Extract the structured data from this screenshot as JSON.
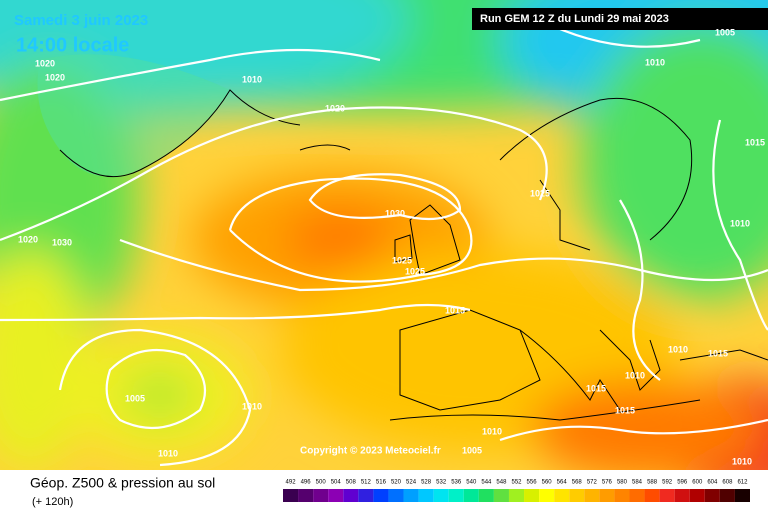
{
  "header": {
    "date": "Samedi 3 juin 2023",
    "time": "14:00 locale",
    "run": "Run GEM 12 Z du Lundi 29 mai 2023"
  },
  "copyright": "Copyright © 2023 Meteociel.fr",
  "footer": {
    "title": "Géop. Z500 & pression au sol",
    "lead": "(+ 120h)"
  },
  "isobar_labels": [
    1020,
    1020,
    1010,
    1020,
    1005,
    1010,
    1015,
    1030,
    1025,
    1020,
    1030,
    1025,
    1025,
    1015,
    1010,
    1005,
    1010,
    1010,
    1015,
    1015,
    1010,
    1010,
    1015,
    1010,
    1010,
    1005
  ],
  "legend": {
    "labels": [
      492,
      496,
      500,
      504,
      508,
      512,
      516,
      520,
      524,
      528,
      532,
      536,
      540,
      544,
      548,
      552,
      556,
      560,
      564,
      568,
      572,
      576,
      580,
      584,
      588,
      592,
      596,
      600,
      604,
      608,
      612
    ],
    "colors": [
      "#3a0050",
      "#55006e",
      "#70008e",
      "#8c00b4",
      "#6000d0",
      "#3020e0",
      "#0040ff",
      "#0070ff",
      "#00a0ff",
      "#00c8ff",
      "#00e4f0",
      "#00f0c8",
      "#00e898",
      "#20e060",
      "#60e040",
      "#a0f020",
      "#d8f000",
      "#ffff00",
      "#ffe400",
      "#ffcc00",
      "#ffb400",
      "#ff9c00",
      "#ff8400",
      "#ff6c00",
      "#ff4c00",
      "#f02a20",
      "#d01010",
      "#b00000",
      "#800000",
      "#500000",
      "#180000"
    ]
  }
}
